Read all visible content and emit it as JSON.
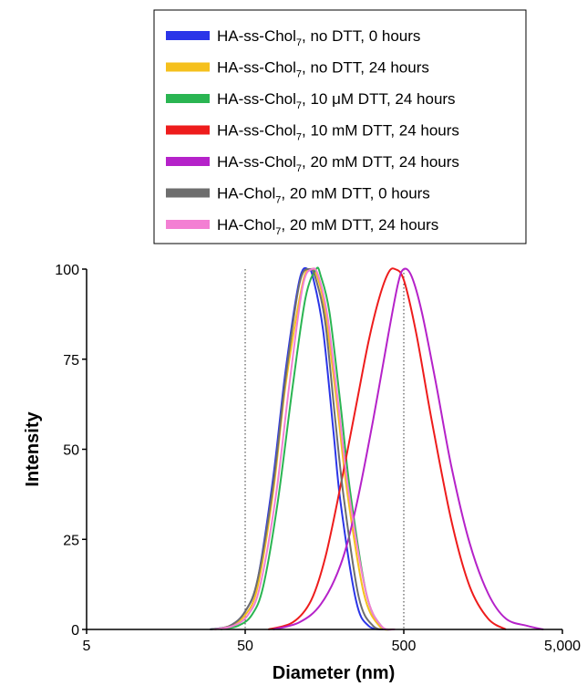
{
  "chart_data": {
    "type": "line",
    "xlabel": "Diameter (nm)",
    "ylabel": "Intensity",
    "x_scale": "log",
    "xlim": [
      5,
      5000
    ],
    "ylim": [
      0,
      100
    ],
    "x_ticks": [
      5,
      50,
      500,
      5000
    ],
    "x_tick_labels": [
      "5",
      "50",
      "500",
      "5,000"
    ],
    "y_ticks": [
      0,
      25,
      50,
      75,
      100
    ],
    "y_tick_labels": [
      "0",
      "25",
      "50",
      "75",
      "100"
    ],
    "reference_lines_x": [
      50,
      500
    ],
    "grid": false,
    "legend_position": "top",
    "series": [
      {
        "name": "HA-ss-Chol7, no DTT, 0 hours",
        "name_base": "HA-ss-Chol",
        "name_sub": "7",
        "name_rest": ", no DTT, 0 hours",
        "color": "#2b35e8",
        "x": [
          30,
          40,
          50,
          60,
          75,
          90,
          110,
          125,
          135,
          155,
          180,
          200,
          250,
          300,
          380
        ],
        "y": [
          0,
          1,
          5,
          14,
          42,
          72,
          97,
          100,
          97,
          83,
          55,
          35,
          8,
          1,
          0
        ]
      },
      {
        "name": "HA-ss-Chol7, no DTT, 24 hours",
        "name_base": "HA-ss-Chol",
        "name_sub": "7",
        "name_rest": ", no DTT, 24 hours",
        "color": "#f5c01d",
        "x": [
          32,
          40,
          50,
          60,
          75,
          90,
          115,
          130,
          142,
          160,
          190,
          220,
          280,
          350,
          420
        ],
        "y": [
          0,
          1,
          4,
          12,
          38,
          68,
          96,
          100,
          98,
          88,
          62,
          38,
          10,
          1,
          0
        ]
      },
      {
        "name": "HA-ss-Chol7, 10 μM DTT, 24 hours",
        "name_base": "HA-ss-Chol",
        "name_sub": "7",
        "name_rest": ", 10 μM DTT, 24 hours",
        "color": "#2ab552",
        "x": [
          35,
          45,
          55,
          65,
          80,
          100,
          120,
          140,
          150,
          170,
          200,
          230,
          290,
          360,
          430
        ],
        "y": [
          0,
          1,
          4,
          12,
          35,
          68,
          92,
          100,
          98,
          88,
          62,
          38,
          10,
          1,
          0
        ]
      },
      {
        "name": "HA-ss-Chol7, 10 mM DTT, 24 hours",
        "name_base": "HA-ss-Chol",
        "name_sub": "7",
        "name_rest": ", 10 mM DTT, 24 hours",
        "color": "#ee1c1c",
        "x": [
          70,
          100,
          130,
          160,
          200,
          250,
          300,
          350,
          400,
          440,
          500,
          600,
          750,
          1000,
          1300,
          1700,
          2200
        ],
        "y": [
          0,
          2,
          8,
          20,
          40,
          62,
          80,
          92,
          99,
          100,
          97,
          82,
          58,
          30,
          12,
          3,
          0
        ]
      },
      {
        "name": "HA-ss-Chol7, 20 mM DTT, 24 hours",
        "name_base": "HA-ss-Chol",
        "name_sub": "7",
        "name_rest": ", 20 mM DTT, 24 hours",
        "color": "#b522c9",
        "x": [
          75,
          110,
          150,
          200,
          250,
          320,
          400,
          460,
          500,
          560,
          650,
          800,
          1000,
          1300,
          1700,
          2200,
          3000,
          3800
        ],
        "y": [
          0,
          2,
          7,
          18,
          34,
          58,
          82,
          96,
          100,
          98,
          88,
          68,
          45,
          24,
          10,
          3,
          1,
          0
        ]
      },
      {
        "name": "HA-Chol7, 20 mM DTT, 0 hours",
        "name_base": "HA-Chol",
        "name_sub": "7",
        "name_rest": ", 20 mM DTT, 0 hours",
        "color": "#6e6e6e",
        "x": [
          30,
          40,
          50,
          60,
          75,
          90,
          110,
          128,
          140,
          160,
          185,
          210,
          260,
          320,
          400
        ],
        "y": [
          0,
          1,
          5,
          14,
          40,
          70,
          96,
          100,
          97,
          85,
          58,
          36,
          9,
          1,
          0
        ]
      },
      {
        "name": "HA-Chol7, 20 mM DTT, 24 hours",
        "name_base": "HA-Chol",
        "name_sub": "7",
        "name_rest": ", 20 mM DTT, 24 hours",
        "color": "#f37fd3",
        "x": [
          32,
          42,
          52,
          62,
          78,
          95,
          115,
          132,
          145,
          165,
          195,
          225,
          290,
          360,
          440
        ],
        "y": [
          0,
          1,
          4,
          12,
          37,
          68,
          95,
          100,
          98,
          87,
          61,
          38,
          10,
          1,
          0
        ]
      }
    ]
  }
}
